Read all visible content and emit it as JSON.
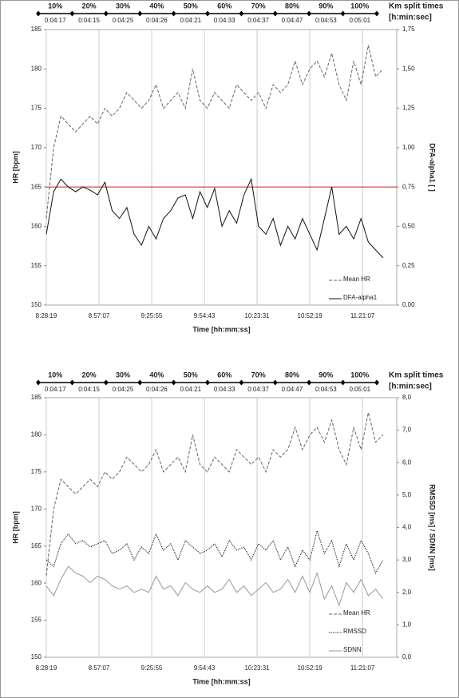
{
  "chart_data": [
    {
      "type": "line",
      "splits": {
        "title": "Km split times",
        "subtitle": "[h:min:sec]",
        "labels": [
          "10%",
          "20%",
          "30%",
          "40%",
          "50%",
          "60%",
          "70%",
          "80%",
          "90%",
          "100%"
        ],
        "times": [
          "0:04:17",
          "0:04:15",
          "0:04:25",
          "0:04:26",
          "0:04:21",
          "0:04:33",
          "0:04:37",
          "0:04:47",
          "0:04:53",
          "0:05:01"
        ]
      },
      "x_label": "Time [hh:mm:ss]",
      "y_label": "HR [bpm]",
      "y2_label": "DFA-alpha1 [ ]",
      "xlim": [
        30499,
        41990
      ],
      "xticks": [
        {
          "value": 30499,
          "label": "8:28:19"
        },
        {
          "value": 32227,
          "label": "8:57:07"
        },
        {
          "value": 33955,
          "label": "9:25:55"
        },
        {
          "value": 35683,
          "label": "9:54:43"
        },
        {
          "value": 37411,
          "label": "10:23:31"
        },
        {
          "value": 39139,
          "label": "10:52:19"
        },
        {
          "value": 40867,
          "label": "11:21:07"
        }
      ],
      "ylim": [
        150,
        185
      ],
      "yticks": [
        150,
        155,
        160,
        165,
        170,
        175,
        180,
        185
      ],
      "y2lim": [
        0,
        1.75
      ],
      "y2ticks": [
        {
          "value": 0,
          "label": "0,00"
        },
        {
          "value": 0.25,
          "label": "0,25"
        },
        {
          "value": 0.5,
          "label": "0,50"
        },
        {
          "value": 0.75,
          "label": "0,75"
        },
        {
          "value": 1,
          "label": "1,00"
        },
        {
          "value": 1.25,
          "label": "1,25"
        },
        {
          "value": 1.5,
          "label": "1,50"
        },
        {
          "value": 1.75,
          "label": "1,75"
        }
      ],
      "grid": true,
      "legend": "lower right",
      "reference_line": {
        "value": 165,
        "color": "#cc2222"
      },
      "x": [
        30499,
        30739,
        30979,
        31219,
        31459,
        31699,
        31939,
        32179,
        32419,
        32659,
        32899,
        33139,
        33379,
        33619,
        33859,
        34099,
        34339,
        34579,
        34819,
        35059,
        35299,
        35539,
        35779,
        36019,
        36259,
        36499,
        36739,
        36979,
        37219,
        37459,
        37699,
        37939,
        38179,
        38419,
        38659,
        38899,
        39139,
        39379,
        39619,
        39859,
        40099,
        40339,
        40579,
        40819,
        41059,
        41299,
        41539
      ],
      "series": [
        {
          "name": "Mean HR",
          "color": "#666666",
          "style": "dashed",
          "values": [
            161,
            170,
            174,
            173,
            172,
            173,
            174,
            173,
            175,
            174,
            175,
            177,
            176,
            175,
            176,
            178,
            175,
            176,
            177,
            175,
            180,
            176,
            175,
            177,
            176,
            175,
            178,
            177,
            176,
            177,
            175,
            178,
            177,
            178,
            181,
            178,
            180,
            181,
            179,
            182,
            178,
            176,
            181,
            178,
            183,
            179,
            180
          ]
        },
        {
          "name": "DFA-alpha1",
          "color": "#111111",
          "style": "solid",
          "axis": "y2",
          "values": [
            0.45,
            0.72,
            0.8,
            0.75,
            0.72,
            0.75,
            0.73,
            0.7,
            0.78,
            0.6,
            0.55,
            0.62,
            0.45,
            0.38,
            0.5,
            0.42,
            0.55,
            0.6,
            0.68,
            0.7,
            0.55,
            0.72,
            0.62,
            0.74,
            0.5,
            0.6,
            0.52,
            0.7,
            0.8,
            0.5,
            0.45,
            0.55,
            0.38,
            0.5,
            0.42,
            0.55,
            0.45,
            0.35,
            0.55,
            0.75,
            0.45,
            0.5,
            0.42,
            0.55,
            0.4,
            0.35,
            0.3
          ]
        }
      ]
    },
    {
      "type": "line",
      "splits": {
        "title": "Km split times",
        "subtitle": "[h:min:sec]",
        "labels": [
          "10%",
          "20%",
          "30%",
          "40%",
          "50%",
          "60%",
          "70%",
          "80%",
          "90%",
          "100%"
        ],
        "times": [
          "0:04:17",
          "0:04:15",
          "0:04:25",
          "0:04:26",
          "0:04:21",
          "0:04:33",
          "0:04:37",
          "0:04:47",
          "0:04:53",
          "0:05:01"
        ]
      },
      "x_label": "Time [hh:mm:ss]",
      "y_label": "HR [bpm]",
      "y2_label": "RMSSD [ms] / SDNN [ms]",
      "xlim": [
        30499,
        41990
      ],
      "xticks": [
        {
          "value": 30499,
          "label": "8:28:19"
        },
        {
          "value": 32227,
          "label": "8:57:07"
        },
        {
          "value": 33955,
          "label": "9:25:55"
        },
        {
          "value": 35683,
          "label": "9:54:43"
        },
        {
          "value": 37411,
          "label": "10:23:31"
        },
        {
          "value": 39139,
          "label": "10:52:19"
        },
        {
          "value": 40867,
          "label": "11:21:07"
        }
      ],
      "ylim": [
        150,
        185
      ],
      "yticks": [
        150,
        155,
        160,
        165,
        170,
        175,
        180,
        185
      ],
      "y2lim": [
        0,
        8
      ],
      "y2ticks": [
        {
          "value": 0,
          "label": "0,0"
        },
        {
          "value": 1,
          "label": "1,0"
        },
        {
          "value": 2,
          "label": "2,0"
        },
        {
          "value": 3,
          "label": "3,0"
        },
        {
          "value": 4,
          "label": "4,0"
        },
        {
          "value": 5,
          "label": "5,0"
        },
        {
          "value": 6,
          "label": "6,0"
        },
        {
          "value": 7,
          "label": "7,0"
        },
        {
          "value": 8,
          "label": "8,0"
        }
      ],
      "grid": true,
      "legend": "lower right",
      "x": [
        30499,
        30739,
        30979,
        31219,
        31459,
        31699,
        31939,
        32179,
        32419,
        32659,
        32899,
        33139,
        33379,
        33619,
        33859,
        34099,
        34339,
        34579,
        34819,
        35059,
        35299,
        35539,
        35779,
        36019,
        36259,
        36499,
        36739,
        36979,
        37219,
        37459,
        37699,
        37939,
        38179,
        38419,
        38659,
        38899,
        39139,
        39379,
        39619,
        39859,
        40099,
        40339,
        40579,
        40819,
        41059,
        41299,
        41539
      ],
      "series": [
        {
          "name": "Mean HR",
          "color": "#666666",
          "style": "dashed",
          "values": [
            161,
            170,
            174,
            173,
            172,
            173,
            174,
            173,
            175,
            174,
            175,
            177,
            176,
            175,
            176,
            178,
            175,
            176,
            177,
            175,
            180,
            176,
            175,
            177,
            176,
            175,
            178,
            177,
            176,
            177,
            175,
            178,
            177,
            178,
            181,
            178,
            180,
            181,
            179,
            182,
            178,
            176,
            181,
            178,
            183,
            179,
            180
          ]
        },
        {
          "name": "RMSSD",
          "color": "#111111",
          "style": "dotted",
          "axis": "y2",
          "values": [
            3.0,
            2.8,
            3.5,
            3.8,
            3.5,
            3.6,
            3.4,
            3.5,
            3.6,
            3.2,
            3.3,
            3.5,
            3.0,
            3.4,
            3.2,
            3.8,
            3.3,
            3.5,
            3.0,
            3.6,
            3.4,
            3.2,
            3.3,
            3.5,
            3.1,
            3.6,
            3.3,
            3.4,
            3.0,
            3.5,
            3.3,
            3.6,
            3.0,
            3.4,
            2.8,
            3.3,
            3.0,
            3.9,
            3.2,
            3.6,
            2.8,
            3.5,
            3.0,
            3.6,
            3.2,
            2.6,
            3.0
          ]
        },
        {
          "name": "SDNN",
          "color": "#999999",
          "style": "solid",
          "axis": "y2",
          "values": [
            2.2,
            1.9,
            2.4,
            2.8,
            2.6,
            2.5,
            2.3,
            2.5,
            2.4,
            2.2,
            2.1,
            2.2,
            2.0,
            2.1,
            2.0,
            2.5,
            2.1,
            2.2,
            1.9,
            2.3,
            2.1,
            2.0,
            2.2,
            2.0,
            2.1,
            2.4,
            2.0,
            2.2,
            1.9,
            2.1,
            2.3,
            2.0,
            2.1,
            2.4,
            2.0,
            2.5,
            2.0,
            2.6,
            1.8,
            2.2,
            1.6,
            2.3,
            2.0,
            2.4,
            1.9,
            2.1,
            1.8
          ]
        }
      ]
    }
  ]
}
